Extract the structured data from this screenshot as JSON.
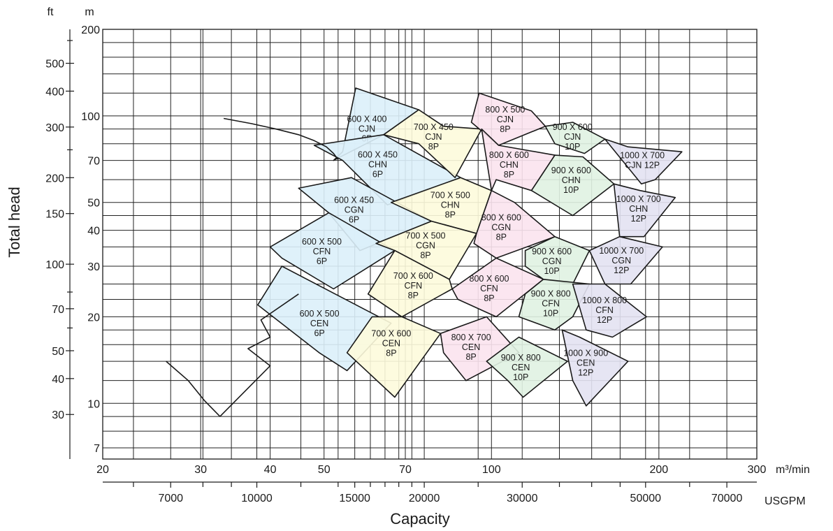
{
  "chart_data": {
    "type": "scatter",
    "title": "",
    "xlabel": "Capacity",
    "ylabel": "Total head",
    "x_unit": "m³/min",
    "x2_unit": "USGPM",
    "y_unit": "m",
    "y2_unit": "ft",
    "xscale": "log",
    "yscale": "log",
    "xlim": [
      20,
      300
    ],
    "ylim": [
      6.4,
      200
    ],
    "grid": true,
    "x_ticks": [
      20,
      30,
      40,
      50,
      70,
      100,
      200,
      300
    ],
    "x_tick_labels": [
      "20",
      "30",
      "40",
      "50",
      "70",
      "100",
      "200",
      "300"
    ],
    "y_ticks": [
      7,
      10,
      20,
      30,
      40,
      50,
      70,
      100,
      200
    ],
    "y_tick_labels": [
      "7",
      "10",
      "20",
      "30",
      "40",
      "50",
      "70",
      "100",
      "200"
    ],
    "y_gridlines": [
      7,
      8,
      9,
      10,
      12,
      14,
      16,
      18,
      20,
      23,
      26,
      30,
      35,
      40,
      45,
      50,
      60,
      70,
      80,
      90,
      100,
      120,
      140,
      160,
      180,
      200
    ],
    "usgpm_labeled_ticks": [
      7000,
      10000,
      15000,
      20000,
      30000,
      50000,
      70000
    ],
    "usgpm_tick_labels": [
      "7000",
      "10000",
      "15000",
      "20000",
      "30000",
      "50000",
      "70000"
    ],
    "usgpm_minor_ticks": [
      6000,
      8000,
      9000,
      12000,
      14000,
      16000,
      17000,
      18000,
      19000,
      25000,
      35000,
      40000,
      45000,
      60000
    ],
    "ft_labeled_ticks": [
      30,
      40,
      50,
      70,
      100,
      150,
      200,
      300,
      400,
      500
    ],
    "ft_tick_labels": [
      "30",
      "40",
      "50",
      "70",
      "100",
      "150",
      "200",
      "300",
      "400",
      "500"
    ],
    "ft_minor_ticks": [
      60,
      80,
      250,
      600
    ],
    "zone_colors": {
      "6P": "#dcf0f9",
      "8P_700": "#fdfbdb",
      "8P_800": "#fbe3ee",
      "10P": "#e0f2e2",
      "12P": "#e3e2f2"
    },
    "zones": [
      {
        "label": [
          "600 X 400",
          "CJN",
          "6P"
        ],
        "color": "6P",
        "pts": [
          [
            57,
            125
          ],
          [
            74,
            105
          ],
          [
            64,
            86
          ],
          [
            52,
            70
          ],
          [
            54,
            75
          ]
        ]
      },
      {
        "label": [
          "600 X 450",
          "CHN",
          "6P"
        ],
        "color": "6P",
        "pts": [
          [
            48,
            79
          ],
          [
            64,
            86
          ],
          [
            88,
            61
          ],
          [
            65,
            49
          ],
          [
            54,
            70
          ]
        ]
      },
      {
        "label": [
          "600 X 450",
          "CGN",
          "6P"
        ],
        "color": "6P",
        "pts": [
          [
            45,
            56
          ],
          [
            56,
            61
          ],
          [
            78,
            43
          ],
          [
            58,
            34
          ],
          [
            51,
            46
          ]
        ]
      },
      {
        "label": [
          "600 X 500",
          "CFN",
          "6P"
        ],
        "color": "6P",
        "pts": [
          [
            40,
            35
          ],
          [
            51,
            46
          ],
          [
            67,
            34
          ],
          [
            52,
            25
          ],
          [
            42,
            32
          ]
        ]
      },
      {
        "label": [
          "600 X 500",
          "CEN",
          "6P"
        ],
        "color": "6P",
        "pts": [
          [
            38,
            22
          ],
          [
            42,
            30
          ],
          [
            66,
            19
          ],
          [
            55,
            13
          ],
          [
            49,
            15
          ]
        ]
      },
      {
        "label": [
          "700 X 450",
          "CJN",
          "8P"
        ],
        "color": "8P_700",
        "pts": [
          [
            74,
            105
          ],
          [
            82,
            92
          ],
          [
            96,
            90
          ],
          [
            86,
            61
          ],
          [
            74,
            80
          ],
          [
            64,
            86
          ]
        ]
      },
      {
        "label": [
          "700 X 500",
          "CHN",
          "8P"
        ],
        "color": "8P_700",
        "pts": [
          [
            88,
            61
          ],
          [
            66,
            50
          ],
          [
            78,
            43
          ],
          [
            94,
            39
          ],
          [
            100,
            55
          ]
        ]
      },
      {
        "label": [
          "700 X 500",
          "CGN",
          "8P"
        ],
        "color": "8P_700",
        "pts": [
          [
            78,
            43
          ],
          [
            62,
            36
          ],
          [
            67,
            34
          ],
          [
            84,
            27
          ],
          [
            94,
            39
          ]
        ]
      },
      {
        "label": [
          "700 X 600",
          "CFN",
          "8P"
        ],
        "color": "8P_700",
        "pts": [
          [
            67,
            34
          ],
          [
            60,
            24
          ],
          [
            69,
            20
          ],
          [
            85,
            25
          ],
          [
            84,
            27
          ]
        ]
      },
      {
        "label": [
          "700 X 600",
          "CEN",
          "8P"
        ],
        "color": "8P_700",
        "pts": [
          [
            61,
            20
          ],
          [
            69,
            20
          ],
          [
            81,
            17.5
          ],
          [
            67,
            10.5
          ],
          [
            55,
            15
          ]
        ]
      },
      {
        "label": [
          "800 X 500",
          "CJN",
          "8P"
        ],
        "color": "8P_800",
        "pts": [
          [
            95,
            120
          ],
          [
            118,
            104
          ],
          [
            125,
            92
          ],
          [
            103,
            79
          ],
          [
            92,
            95
          ]
        ]
      },
      {
        "label": [
          "800 X 600",
          "CHN",
          "8P"
        ],
        "color": "8P_800",
        "pts": [
          [
            96,
            90
          ],
          [
            103,
            79
          ],
          [
            130,
            73
          ],
          [
            118,
            55
          ],
          [
            102,
            60
          ],
          [
            100,
            55
          ]
        ]
      },
      {
        "label": [
          "800 X 600",
          "CGN",
          "8P"
        ],
        "color": "8P_800",
        "pts": [
          [
            94,
            39
          ],
          [
            100,
            55
          ],
          [
            110,
            50
          ],
          [
            130,
            38
          ],
          [
            102,
            32
          ],
          [
            93,
            36
          ]
        ]
      },
      {
        "label": [
          "800 X 600",
          "CFN",
          "8P"
        ],
        "color": "8P_800",
        "pts": [
          [
            85,
            25
          ],
          [
            102,
            32
          ],
          [
            124,
            27
          ],
          [
            102,
            20
          ],
          [
            87,
            23
          ]
        ]
      },
      {
        "label": [
          "800 X 700",
          "CEN",
          "8P"
        ],
        "color": "8P_800",
        "pts": [
          [
            81,
            17.5
          ],
          [
            98,
            20
          ],
          [
            112,
            15
          ],
          [
            90,
            12
          ],
          [
            82,
            15
          ]
        ]
      },
      {
        "label": [
          "900 X 600",
          "CJN",
          "10P"
        ],
        "color": "10P",
        "pts": [
          [
            125,
            92
          ],
          [
            140,
            95
          ],
          [
            160,
            83
          ],
          [
            147,
            74
          ],
          [
            130,
            80
          ]
        ]
      },
      {
        "label": [
          "900 X 600",
          "CHN",
          "10P"
        ],
        "color": "10P",
        "pts": [
          [
            130,
            73
          ],
          [
            146,
            72
          ],
          [
            166,
            58
          ],
          [
            140,
            45
          ],
          [
            118,
            55
          ]
        ]
      },
      {
        "label": [
          "900 X 600",
          "CGN",
          "10P"
        ],
        "color": "10P",
        "pts": [
          [
            115,
            34
          ],
          [
            130,
            38
          ],
          [
            150,
            34
          ],
          [
            140,
            26
          ],
          [
            124,
            27
          ],
          [
            115,
            30
          ]
        ]
      },
      {
        "label": [
          "900 X 800",
          "CFN",
          "10P"
        ],
        "color": "10P",
        "pts": [
          [
            115,
            24
          ],
          [
            124,
            27
          ],
          [
            150,
            26
          ],
          [
            140,
            20
          ],
          [
            130,
            18
          ],
          [
            112,
            20
          ]
        ]
      },
      {
        "label": [
          "900 X 800",
          "CEN",
          "10P"
        ],
        "color": "10P",
        "pts": [
          [
            98,
            14
          ],
          [
            112,
            17
          ],
          [
            137,
            14
          ],
          [
            114,
            10.5
          ],
          [
            107,
            12
          ]
        ]
      },
      {
        "label": [
          "1000 X 700",
          "CJN 12P"
        ],
        "color": "12P",
        "pts": [
          [
            160,
            83
          ],
          [
            176,
            78
          ],
          [
            220,
            75
          ],
          [
            197,
            60
          ],
          [
            186,
            58
          ]
        ]
      },
      {
        "label": [
          "1000 X 700",
          "CHN",
          "12P"
        ],
        "color": "12P",
        "pts": [
          [
            166,
            58
          ],
          [
            185,
            55
          ],
          [
            214,
            52
          ],
          [
            188,
            38
          ],
          [
            170,
            38
          ]
        ]
      },
      {
        "label": [
          "1000 X 700",
          "CGN",
          "12P"
        ],
        "color": "12P",
        "pts": [
          [
            150,
            34
          ],
          [
            170,
            38
          ],
          [
            203,
            35
          ],
          [
            178,
            26
          ],
          [
            160,
            26
          ]
        ]
      },
      {
        "label": [
          "1000 X 800",
          "CFN",
          "12P"
        ],
        "color": "12P",
        "pts": [
          [
            140,
            26
          ],
          [
            160,
            26
          ],
          [
            190,
            20
          ],
          [
            165,
            17
          ],
          [
            148,
            18
          ]
        ]
      },
      {
        "label": [
          "1000 X 900",
          "CEN",
          "12P"
        ],
        "color": "12P",
        "pts": [
          [
            134,
            18
          ],
          [
            144,
            17
          ],
          [
            176,
            14
          ],
          [
            148,
            9.8
          ],
          [
            140,
            12
          ]
        ]
      }
    ],
    "curves": [
      {
        "pts": [
          [
            33,
            98
          ],
          [
            37,
            94
          ],
          [
            41,
            90
          ],
          [
            45,
            86
          ],
          [
            48,
            82
          ],
          [
            50.5,
            78
          ],
          [
            52,
            74
          ],
          [
            53,
            70.5
          ]
        ]
      },
      {
        "pts": [
          [
            26,
            14
          ],
          [
            28.5,
            12
          ],
          [
            30.5,
            10.2
          ],
          [
            32.5,
            9
          ]
        ]
      },
      {
        "pts": [
          [
            32.5,
            9
          ],
          [
            40,
            13.5
          ],
          [
            36.5,
            15.5
          ],
          [
            40,
            17
          ],
          [
            38.5,
            19.5
          ],
          [
            45,
            24
          ]
        ]
      }
    ],
    "labels": [
      "200",
      "100",
      "70",
      "50",
      "40",
      "30",
      "20",
      "10",
      "7"
    ]
  },
  "axis_units": {
    "ft": "ft",
    "m": "m",
    "m3min": "m³/min",
    "usgpm": "USGPM"
  }
}
